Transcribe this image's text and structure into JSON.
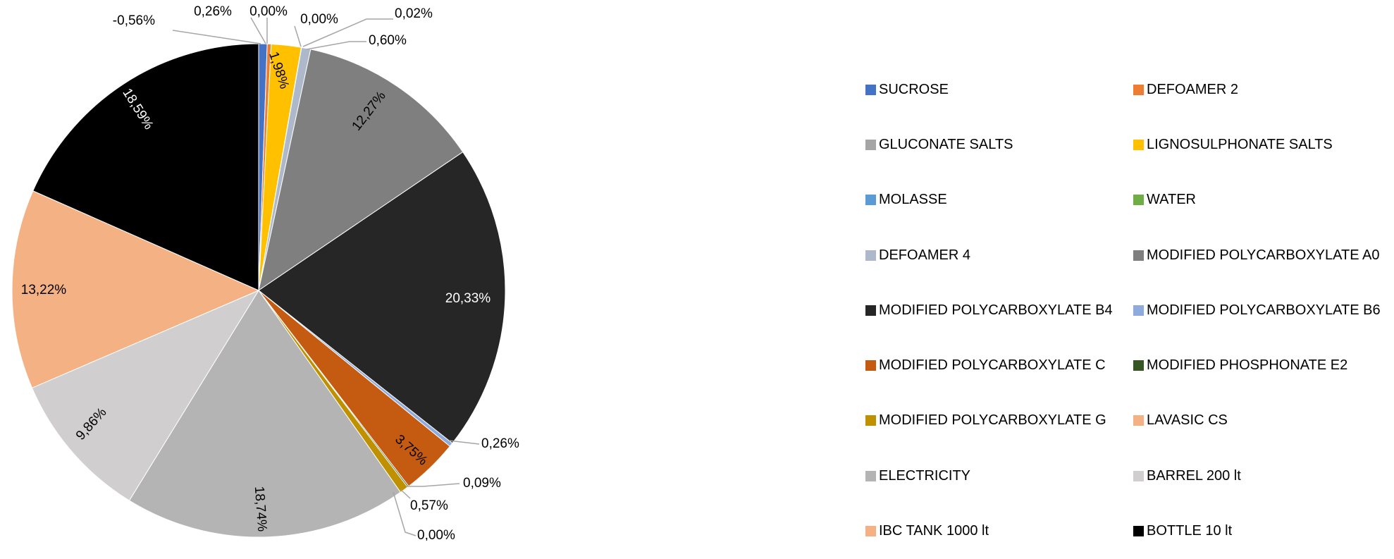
{
  "chart_data": {
    "type": "pie",
    "start_angle_deg": 0,
    "direction": "clockwise",
    "legend_position": "right",
    "slices": [
      {
        "name": "SUCROSE",
        "value": -0.56,
        "label": "-0,56%",
        "color": "#4472C4"
      },
      {
        "name": "DEFOAMER 2",
        "value": 0.26,
        "label": "0,26%",
        "color": "#ED7D31"
      },
      {
        "name": "GLUCONATE SALTS",
        "value": 0.0,
        "label": "0,00%",
        "color": "#A5A5A5"
      },
      {
        "name": "LIGNOSULPHONATE SALTS",
        "value": 1.98,
        "label": "1,98%",
        "color": "#FFC000"
      },
      {
        "name": "MOLASSE",
        "value": 0.0,
        "label": "0,00%",
        "color": "#5B9BD5"
      },
      {
        "name": "WATER",
        "value": 0.02,
        "label": "0,02%",
        "color": "#70AD47"
      },
      {
        "name": "DEFOAMER 4",
        "value": 0.6,
        "label": "0,60%",
        "color": "#ADB9CA"
      },
      {
        "name": "MODIFIED POLYCARBOXYLATE A0",
        "value": 12.27,
        "label": "12,27%",
        "color": "#7F7F7F"
      },
      {
        "name": "MODIFIED POLYCARBOXYLATE B4",
        "value": 20.33,
        "label": "20,33%",
        "color": "#262626"
      },
      {
        "name": "MODIFIED POLYCARBOXYLATE B6",
        "value": 0.26,
        "label": "0,26%",
        "color": "#8FAADC"
      },
      {
        "name": "MODIFIED POLYCARBOXYLATE C",
        "value": 3.75,
        "label": "3,75%",
        "color": "#C55A11"
      },
      {
        "name": "MODIFIED PHOSPHONATE E2",
        "value": 0.09,
        "label": "0,09%",
        "color": "#375623"
      },
      {
        "name": "MODIFIED POLYCARBOXYLATE G",
        "value": 0.57,
        "label": "0,57%",
        "color": "#BF9000"
      },
      {
        "name": "LAVASIC CS",
        "value": 0.0,
        "label": "0,00%",
        "color": "#F4B183"
      },
      {
        "name": "ELECTRICITY",
        "value": 18.74,
        "label": "18,74%",
        "color": "#B4B4B4"
      },
      {
        "name": " BARREL 200 lt",
        "value": 9.86,
        "label": "9,86%",
        "color": "#D0CECE"
      },
      {
        "name": "IBC TANK 1000 lt",
        "value": 13.22,
        "label": "13,22%",
        "color": "#F4B183"
      },
      {
        "name": "BOTTLE 10 lt",
        "value": 18.59,
        "label": "18,59%",
        "color": "#000000"
      }
    ]
  },
  "legend": {
    "items": [
      {
        "label": "SUCROSE",
        "color": "#4472C4"
      },
      {
        "label": "DEFOAMER 2",
        "color": "#ED7D31"
      },
      {
        "label": "GLUCONATE SALTS",
        "color": "#A5A5A5"
      },
      {
        "label": "LIGNOSULPHONATE SALTS",
        "color": "#FFC000"
      },
      {
        "label": "MOLASSE",
        "color": "#5B9BD5"
      },
      {
        "label": "WATER",
        "color": "#70AD47"
      },
      {
        "label": "DEFOAMER 4",
        "color": "#ADB9CA"
      },
      {
        "label": "MODIFIED POLYCARBOXYLATE A0",
        "color": "#7F7F7F"
      },
      {
        "label": "MODIFIED POLYCARBOXYLATE B4",
        "color": "#262626"
      },
      {
        "label": "MODIFIED POLYCARBOXYLATE B6",
        "color": "#8FAADC"
      },
      {
        "label": "MODIFIED POLYCARBOXYLATE C",
        "color": "#C55A11"
      },
      {
        "label": "MODIFIED PHOSPHONATE E2",
        "color": "#375623"
      },
      {
        "label": "MODIFIED POLYCARBOXYLATE G",
        "color": "#BF9000"
      },
      {
        "label": "LAVASIC CS",
        "color": "#F4B183"
      },
      {
        "label": "ELECTRICITY",
        "color": "#B4B4B4"
      },
      {
        "label": " BARREL 200 lt",
        "color": "#D0CECE"
      },
      {
        "label": "IBC TANK 1000 lt",
        "color": "#F4B183"
      },
      {
        "label": "BOTTLE 10 lt",
        "color": "#000000"
      }
    ]
  }
}
